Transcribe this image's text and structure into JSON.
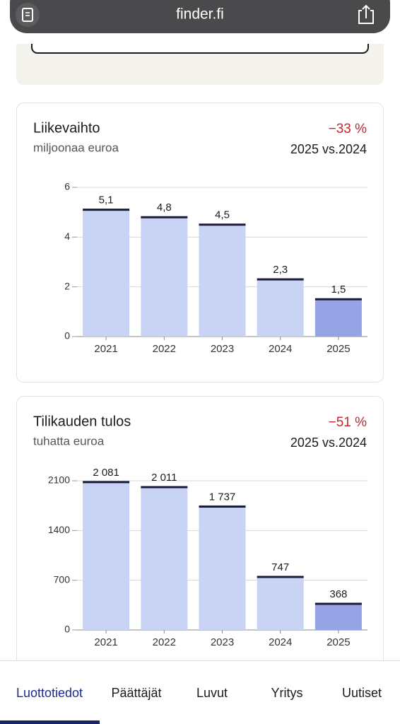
{
  "browser": {
    "url": "finder.fi"
  },
  "chart_data": [
    {
      "type": "bar",
      "title": "Liikevaihto",
      "subtitle": "miljoonaa euroa",
      "change": "−33 %",
      "comparison": "2025 vs.2024",
      "categories": [
        "2021",
        "2022",
        "2023",
        "2024",
        "2025"
      ],
      "values": [
        5.1,
        4.8,
        4.5,
        2.3,
        1.5
      ],
      "value_labels": [
        "5,1",
        "4,8",
        "4,5",
        "2,3",
        "1,5"
      ],
      "colors": [
        "#c9d3f4",
        "#c9d3f4",
        "#c9d3f4",
        "#c9d3f4",
        "#96a3e5"
      ],
      "ylim": [
        0,
        6
      ],
      "yticks": [
        0,
        2,
        4,
        6
      ],
      "grid": true
    },
    {
      "type": "bar",
      "title": "Tilikauden tulos",
      "subtitle": "tuhatta euroa",
      "change": "−51 %",
      "comparison": "2025 vs.2024",
      "categories": [
        "2021",
        "2022",
        "2023",
        "2024",
        "2025"
      ],
      "values": [
        2081,
        2011,
        1737,
        747,
        368
      ],
      "value_labels": [
        "2 081",
        "2 011",
        "1 737",
        "747",
        "368"
      ],
      "colors": [
        "#c9d3f4",
        "#c9d3f4",
        "#c9d3f4",
        "#c9d3f4",
        "#96a3e5"
      ],
      "ylim": [
        0,
        2100
      ],
      "yticks": [
        0,
        700,
        1400,
        2100
      ],
      "grid": true
    }
  ],
  "nav": {
    "tabs": [
      "Luottotiedot",
      "Päättäjät",
      "Luvut",
      "Yritys",
      "Uutiset"
    ]
  }
}
